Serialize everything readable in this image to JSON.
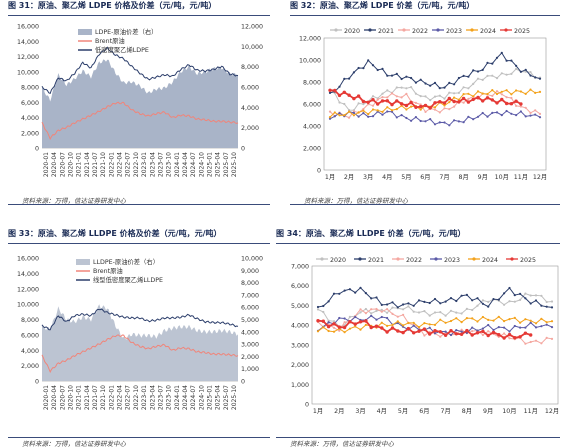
{
  "panels": [
    {
      "title": "图 31：原油、聚乙烯 LDPE 价格及价差（元/吨，元/吨）",
      "source": "资料来源：万得，信达证券研发中心"
    },
    {
      "title": "图 32：原油、聚乙烯 LDPE 价差（元/吨，元/吨）",
      "source": "资料来源：万得，信达证券研发中心"
    },
    {
      "title": "图 33：原油、聚乙烯 LLDPE 价格及价差（元/吨，元/吨）",
      "source": "资料来源：万得，信达证券研发中心"
    },
    {
      "title": "图 34：原油、聚乙烯 LLDPE 价差（元/吨，元/吨）",
      "source": "资料来源：万得，信达证券研发中心"
    }
  ],
  "chart_data": [
    {
      "type": "area",
      "left_ylim": [
        0,
        16000
      ],
      "left_ticks": [
        "0",
        "2,000",
        "4,000",
        "6,000",
        "8,000",
        "10,000",
        "12,000",
        "14,000",
        "16,000"
      ],
      "right_ylim": [
        0,
        12000
      ],
      "right_ticks": [
        "0",
        "2,000",
        "4,000",
        "6,000",
        "8,000",
        "10,000",
        "12,000"
      ],
      "x_ticks": [
        "2020-01",
        "2020-04",
        "2020-07",
        "2020-10",
        "2021-01",
        "2021-04",
        "2021-07",
        "2021-10",
        "2022-01",
        "2022-04",
        "2022-07",
        "2022-10",
        "2023-01",
        "2023-04",
        "2023-07",
        "2023-10",
        "2024-01",
        "2024-04",
        "2024-07",
        "2024-10",
        "2025-01",
        "2025-04",
        "2025-07",
        "2025-10"
      ],
      "series": [
        {
          "name": "LDPE-原油价差（右）",
          "axis": "right",
          "color": "#a9b4c8",
          "style": "area",
          "values": [
            5900,
            4700,
            7200,
            6200,
            6800,
            7600,
            7000,
            8400,
            8700,
            7400,
            6400,
            6500,
            6100,
            5400,
            5800,
            5900,
            6500,
            7500,
            8000,
            7300,
            7500,
            7800,
            7900,
            7300,
            7200
          ]
        },
        {
          "name": "Brent原油",
          "axis": "left",
          "color": "#f0857a",
          "style": "line",
          "values": [
            3300,
            1300,
            2300,
            2700,
            3300,
            3800,
            4300,
            4800,
            5400,
            5900,
            5900,
            5000,
            4500,
            4200,
            4500,
            4700,
            4000,
            4300,
            4200,
            3800,
            3700,
            3500,
            3500,
            3400,
            3300
          ]
        },
        {
          "name": "低密度聚乙烯LDPE",
          "axis": "left",
          "color": "#2c3e6b",
          "style": "line",
          "values": [
            8000,
            7200,
            9200,
            8800,
            9800,
            11200,
            10500,
            12300,
            13100,
            12200,
            11700,
            10700,
            9800,
            9000,
            9300,
            9600,
            9400,
            10300,
            10900,
            10200,
            10100,
            10300,
            10700,
            9700,
            9500
          ]
        }
      ]
    },
    {
      "type": "line",
      "categories": [
        "1月",
        "2月",
        "3月",
        "4月",
        "5月",
        "6月",
        "7月",
        "8月",
        "9月",
        "10月",
        "11月",
        "12月"
      ],
      "ylim": [
        0,
        12000
      ],
      "y_ticks": [
        "0",
        "2,000",
        "4,000",
        "6,000",
        "8,000",
        "10,000",
        "12,000"
      ],
      "series": [
        {
          "name": "2020",
          "color": "#c0c0c0",
          "values": [
            7300,
            5400,
            6300,
            7100,
            7600,
            6500,
            6700,
            7300,
            8400,
            8600,
            9100,
            8400
          ]
        },
        {
          "name": "2021",
          "color": "#2c3e6b",
          "values": [
            6800,
            8500,
            9800,
            8700,
            8400,
            7900,
            7500,
            8500,
            9200,
            10500,
            9100,
            8300
          ]
        },
        {
          "name": "2022",
          "color": "#f4a7a0",
          "values": [
            5200,
            4900,
            5800,
            6800,
            6700,
            5500,
            5400,
            6300,
            6800,
            7000,
            5700,
            5100
          ]
        },
        {
          "name": "2023",
          "color": "#5b5aa7",
          "values": [
            4800,
            5200,
            4900,
            5300,
            4700,
            4500,
            4200,
            4500,
            5000,
            5200,
            5100,
            4800
          ]
        },
        {
          "name": "2024",
          "color": "#f3a21b",
          "values": [
            5000,
            5100,
            5300,
            5500,
            5700,
            5700,
            6000,
            6800,
            7000,
            7100,
            7100,
            7100
          ]
        },
        {
          "name": "2025",
          "color": "#e53935",
          "values": [
            7200,
            6800,
            6200,
            6200,
            6000,
            5700,
            6300,
            6300,
            6500,
            6200,
            6000,
            null
          ]
        }
      ]
    },
    {
      "type": "area",
      "left_ylim": [
        0,
        16000
      ],
      "left_ticks": [
        "0",
        "2,000",
        "4,000",
        "6,000",
        "8,000",
        "10,000",
        "12,000",
        "14,000",
        "16,000"
      ],
      "right_ylim": [
        0,
        10000
      ],
      "right_ticks": [
        "0",
        "1,000",
        "2,000",
        "3,000",
        "4,000",
        "5,000",
        "6,000",
        "7,000",
        "8,000",
        "9,000",
        "10,000"
      ],
      "x_ticks": [
        "2020-01",
        "2020-04",
        "2020-07",
        "2020-10",
        "2021-01",
        "2021-04",
        "2021-07",
        "2021-10",
        "2022-01",
        "2022-04",
        "2022-07",
        "2022-10",
        "2023-01",
        "2023-04",
        "2023-07",
        "2023-10",
        "2024-01",
        "2024-04",
        "2024-07",
        "2024-10",
        "2025-01",
        "2025-04",
        "2025-07",
        "2025-10"
      ],
      "series": [
        {
          "name": "LLDPE-原油价差（右）",
          "axis": "right",
          "color": "#bcc4d2",
          "style": "area",
          "values": [
            4400,
            4200,
            5900,
            5000,
            4800,
            5200,
            5000,
            6100,
            5900,
            4500,
            3400,
            3800,
            3700,
            3700,
            3600,
            4100,
            4300,
            4400,
            4400,
            4100,
            4000,
            4000,
            4100,
            4000,
            3800
          ]
        },
        {
          "name": "Brent原油",
          "axis": "left",
          "color": "#f0857a",
          "style": "line",
          "values": [
            3300,
            1300,
            2300,
            2700,
            3300,
            3800,
            4300,
            4800,
            5400,
            5900,
            5900,
            5000,
            4500,
            4200,
            4500,
            4700,
            4000,
            4300,
            4200,
            3800,
            3700,
            3500,
            3500,
            3400,
            3300
          ]
        },
        {
          "name": "线型低密度聚乙烯LLDPE",
          "axis": "left",
          "color": "#2c3e6b",
          "style": "line",
          "values": [
            7200,
            6700,
            8500,
            7700,
            8500,
            8700,
            8500,
            9400,
            8900,
            8600,
            8300,
            8200,
            8200,
            7800,
            7900,
            8200,
            8200,
            8300,
            8600,
            8100,
            7700,
            7600,
            7600,
            7400,
            7100
          ]
        }
      ]
    },
    {
      "type": "line",
      "categories": [
        "1月",
        "2月",
        "3月",
        "4月",
        "5月",
        "6月",
        "7月",
        "8月",
        "9月",
        "10月",
        "11月",
        "12月"
      ],
      "ylim": [
        0,
        7000
      ],
      "y_ticks": [
        "0",
        "1,000",
        "2,000",
        "3,000",
        "4,000",
        "5,000",
        "6,000",
        "7,000"
      ],
      "series": [
        {
          "name": "2020",
          "color": "#c0c0c0",
          "values": [
            4800,
            3900,
            4700,
            4700,
            4900,
            4600,
            4600,
            4700,
            5300,
            5100,
            5600,
            5200
          ]
        },
        {
          "name": "2021",
          "color": "#2c3e6b",
          "values": [
            4800,
            5700,
            5800,
            5100,
            5000,
            5200,
            5200,
            5500,
            5000,
            5800,
            5200,
            4900
          ]
        },
        {
          "name": "2022",
          "color": "#f4a7a0",
          "values": [
            4100,
            3800,
            4700,
            4800,
            4400,
            3600,
            3500,
            3700,
            3600,
            3400,
            3100,
            3300
          ]
        },
        {
          "name": "2023",
          "color": "#5b5aa7",
          "values": [
            3800,
            4300,
            4300,
            4400,
            3900,
            3800,
            3600,
            3700,
            3900,
            3800,
            4000,
            3900
          ]
        },
        {
          "name": "2024",
          "color": "#f3a21b",
          "values": [
            3800,
            3700,
            3900,
            4000,
            4100,
            4000,
            4200,
            4300,
            4300,
            4300,
            4200,
            4200
          ]
        },
        {
          "name": "2025",
          "color": "#e53935",
          "values": [
            4200,
            3900,
            4200,
            3800,
            3700,
            3700,
            3600,
            3600,
            3600,
            3400,
            3500,
            null
          ]
        }
      ]
    }
  ]
}
